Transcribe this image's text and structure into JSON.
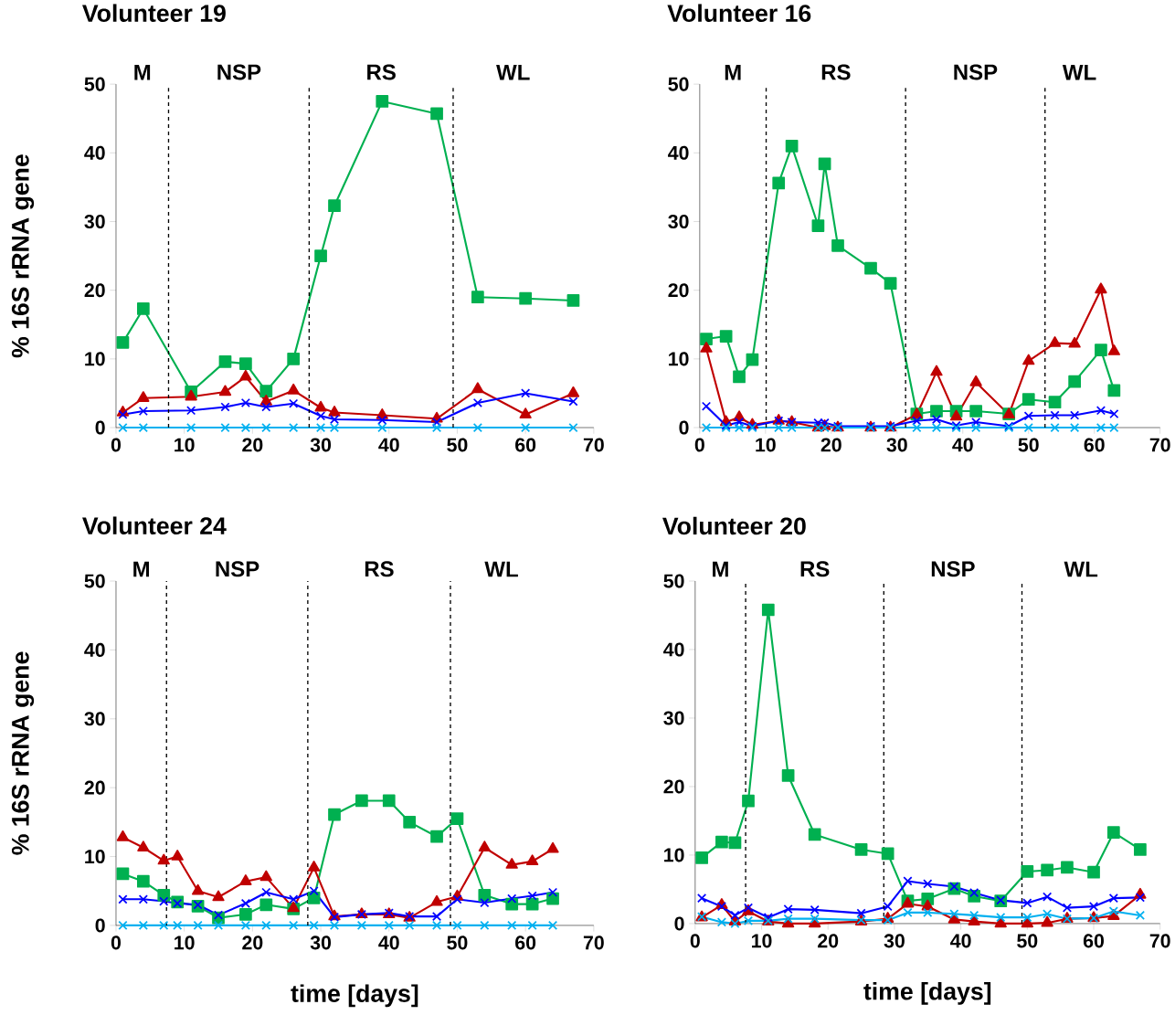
{
  "chart_data": [
    {
      "type": "line",
      "title": "Volunteer 19",
      "ylabel": "% 16S rRNA gene",
      "line_style": "solid",
      "x": [
        1,
        4,
        11,
        16,
        19,
        22,
        26,
        30,
        32,
        39,
        47,
        53,
        60,
        67
      ],
      "xlim": [
        0,
        70
      ],
      "ylim": [
        0,
        50
      ],
      "xticks": [
        0,
        10,
        20,
        30,
        40,
        50,
        60,
        70
      ],
      "yticks": [
        0,
        10,
        20,
        30,
        40,
        50
      ],
      "series": [
        {
          "color": "#00b050",
          "marker": "square",
          "values": [
            12.4,
            17.3,
            5.2,
            9.6,
            9.3,
            5.3,
            10.0,
            25.0,
            32.3,
            47.5,
            45.7,
            19.0,
            18.8,
            18.5
          ]
        },
        {
          "color": "#c00000",
          "marker": "triangle",
          "values": [
            2.2,
            4.3,
            4.5,
            5.2,
            7.4,
            3.8,
            5.4,
            2.9,
            2.2,
            1.8,
            1.3,
            5.6,
            1.9,
            5.0
          ]
        },
        {
          "color": "#0000ff",
          "marker": "cross",
          "values": [
            1.9,
            2.4,
            2.5,
            3.0,
            3.6,
            3.0,
            3.5,
            1.7,
            1.2,
            1.1,
            0.8,
            3.6,
            5.0,
            3.8
          ]
        },
        {
          "color": "#00b0f0",
          "marker": "cross",
          "values": [
            0,
            0,
            0,
            0,
            0,
            0,
            0,
            0,
            0,
            0,
            0,
            0,
            0,
            0
          ]
        }
      ],
      "ref_lines": [
        {
          "axis": "x",
          "value": 7.7,
          "color": "#000000",
          "line_style": "dashed"
        },
        {
          "axis": "x",
          "value": 28.3,
          "color": "#000000",
          "line_style": "dashed"
        },
        {
          "axis": "x",
          "value": 49.4,
          "color": "#000000",
          "line_style": "dashed"
        }
      ],
      "annotations": [
        "M",
        "NSP",
        "RS",
        "WL"
      ]
    },
    {
      "type": "line",
      "title": "Volunteer 16",
      "line_style": "solid",
      "x": [
        1,
        4,
        6,
        8,
        12,
        14,
        18,
        19,
        21,
        26,
        29,
        33,
        36,
        39,
        42,
        47,
        50,
        54,
        57,
        61,
        63
      ],
      "xlim": [
        0,
        70
      ],
      "ylim": [
        0,
        50
      ],
      "xticks": [
        0,
        10,
        20,
        30,
        40,
        50,
        60,
        70
      ],
      "yticks": [
        0,
        10,
        20,
        30,
        40,
        50
      ],
      "series": [
        {
          "color": "#00b050",
          "marker": "square",
          "values": [
            12.9,
            13.3,
            7.4,
            9.9,
            35.6,
            41.0,
            29.4,
            38.4,
            26.5,
            23.2,
            21.0,
            2.0,
            2.4,
            2.4,
            2.4,
            2.0,
            4.1,
            3.7,
            6.7,
            11.3,
            5.4
          ]
        },
        {
          "color": "#c00000",
          "marker": "triangle",
          "values": [
            11.5,
            0.8,
            1.5,
            0.4,
            1.0,
            0.8,
            0,
            0.2,
            0,
            0,
            0,
            1.9,
            8.1,
            1.6,
            6.6,
            1.9,
            9.7,
            12.3,
            12.2,
            20.1,
            11.1
          ]
        },
        {
          "color": "#0000ff",
          "marker": "cross",
          "values": [
            3.1,
            0.3,
            0.8,
            0.2,
            1.0,
            0.8,
            0.7,
            0.7,
            0.2,
            0.2,
            0.2,
            1.0,
            1.2,
            0.3,
            0.8,
            0.2,
            1.7,
            1.8,
            1.8,
            2.5,
            2.0
          ]
        },
        {
          "color": "#00b0f0",
          "marker": "cross",
          "values": [
            0,
            0,
            0,
            0,
            0,
            0,
            0,
            0,
            0,
            0,
            0,
            0,
            0,
            0,
            0,
            0,
            0,
            0,
            0,
            0,
            0
          ]
        }
      ],
      "ref_lines": [
        {
          "axis": "x",
          "value": 10.1,
          "color": "#000000",
          "line_style": "dashed"
        },
        {
          "axis": "x",
          "value": 31.3,
          "color": "#000000",
          "line_style": "dashed"
        },
        {
          "axis": "x",
          "value": 52.5,
          "color": "#000000",
          "line_style": "dashed"
        }
      ],
      "annotations": [
        "M",
        "RS",
        "NSP",
        "WL"
      ]
    },
    {
      "type": "line",
      "title": "Volunteer 24",
      "xlabel": "time [days]",
      "ylabel": "% 16S rRNA gene",
      "line_style": "solid",
      "x": [
        1,
        4,
        7,
        9,
        12,
        15,
        19,
        22,
        26,
        29,
        32,
        36,
        40,
        43,
        47,
        50,
        54,
        58,
        61,
        64
      ],
      "xlim": [
        0,
        70
      ],
      "ylim": [
        0,
        50
      ],
      "xticks": [
        0,
        10,
        20,
        30,
        40,
        50,
        60,
        70
      ],
      "yticks": [
        0,
        10,
        20,
        30,
        40,
        50
      ],
      "series": [
        {
          "color": "#00b050",
          "marker": "square",
          "values": [
            7.5,
            6.4,
            4.4,
            3.4,
            2.8,
            1.1,
            1.6,
            3.0,
            2.4,
            4.0,
            16.1,
            18.1,
            18.1,
            15.0,
            12.9,
            15.5,
            4.4,
            3.1,
            3.1,
            3.9
          ]
        },
        {
          "color": "#c00000",
          "marker": "triangle",
          "values": [
            12.8,
            11.3,
            9.4,
            10.0,
            5.0,
            4.1,
            6.4,
            7.0,
            2.5,
            8.4,
            1.3,
            1.6,
            1.6,
            1.1,
            3.4,
            4.2,
            11.3,
            8.8,
            9.3,
            11.1
          ]
        },
        {
          "color": "#0000ff",
          "marker": "cross",
          "values": [
            3.8,
            3.8,
            3.5,
            3.2,
            3.0,
            1.5,
            3.2,
            4.8,
            3.8,
            5.0,
            1.2,
            1.6,
            1.8,
            1.3,
            1.3,
            3.8,
            3.3,
            3.9,
            4.3,
            4.8
          ]
        },
        {
          "color": "#00b0f0",
          "marker": "cross",
          "values": [
            0,
            0,
            0,
            0,
            0,
            0,
            0,
            0,
            0,
            0,
            0,
            0,
            0,
            0,
            0,
            0,
            0,
            0,
            0,
            0
          ]
        }
      ],
      "ref_lines": [
        {
          "axis": "x",
          "value": 7.4,
          "color": "#000000",
          "line_style": "dashed"
        },
        {
          "axis": "x",
          "value": 28.1,
          "color": "#000000",
          "line_style": "dashed"
        },
        {
          "axis": "x",
          "value": 49.0,
          "color": "#000000",
          "line_style": "dashed"
        }
      ],
      "annotations": [
        "M",
        "NSP",
        "RS",
        "WL"
      ]
    },
    {
      "type": "line",
      "title": "Volunteer 20",
      "xlabel": "time [days]",
      "line_style": "solid",
      "x": [
        1,
        4,
        6,
        8,
        11,
        14,
        18,
        25,
        29,
        32,
        35,
        39,
        42,
        46,
        50,
        53,
        56,
        60,
        63,
        67
      ],
      "xlim": [
        0,
        70
      ],
      "ylim": [
        0,
        50
      ],
      "xticks": [
        0,
        10,
        20,
        30,
        40,
        50,
        60,
        70
      ],
      "yticks": [
        0,
        10,
        20,
        30,
        40,
        50
      ],
      "series": [
        {
          "color": "#00b050",
          "marker": "square",
          "values": [
            9.6,
            11.9,
            11.8,
            17.9,
            45.8,
            21.6,
            13.0,
            10.8,
            10.2,
            3.3,
            3.6,
            5.1,
            4.0,
            3.3,
            7.6,
            7.8,
            8.2,
            7.5,
            13.3,
            10.8
          ]
        },
        {
          "color": "#c00000",
          "marker": "triangle",
          "values": [
            0.9,
            2.7,
            0.3,
            1.8,
            0.3,
            0,
            0,
            0.3,
            0.7,
            2.9,
            2.5,
            0.6,
            0.3,
            0,
            0,
            0.1,
            0.7,
            0.8,
            1.1,
            4.2
          ]
        },
        {
          "color": "#0000ff",
          "marker": "cross",
          "values": [
            3.7,
            2.5,
            1.2,
            2.3,
            0.9,
            2.1,
            2.0,
            1.5,
            2.5,
            6.2,
            5.8,
            5.4,
            4.5,
            3.4,
            3.0,
            3.9,
            2.3,
            2.5,
            3.7,
            3.8
          ]
        },
        {
          "color": "#00b0f0",
          "marker": "cross",
          "values": [
            1.0,
            0.2,
            0,
            0.4,
            0.4,
            0.7,
            0.7,
            0.5,
            0.5,
            1.6,
            1.6,
            1.4,
            1.2,
            0.9,
            0.9,
            1.4,
            0.7,
            0.8,
            1.8,
            1.2
          ]
        }
      ],
      "ref_lines": [
        {
          "axis": "x",
          "value": 7.6,
          "color": "#000000",
          "line_style": "dashed"
        },
        {
          "axis": "x",
          "value": 28.4,
          "color": "#000000",
          "line_style": "dashed"
        },
        {
          "axis": "x",
          "value": 49.2,
          "color": "#000000",
          "line_style": "dashed"
        }
      ],
      "annotations": [
        "M",
        "RS",
        "NSP",
        "WL"
      ]
    }
  ]
}
